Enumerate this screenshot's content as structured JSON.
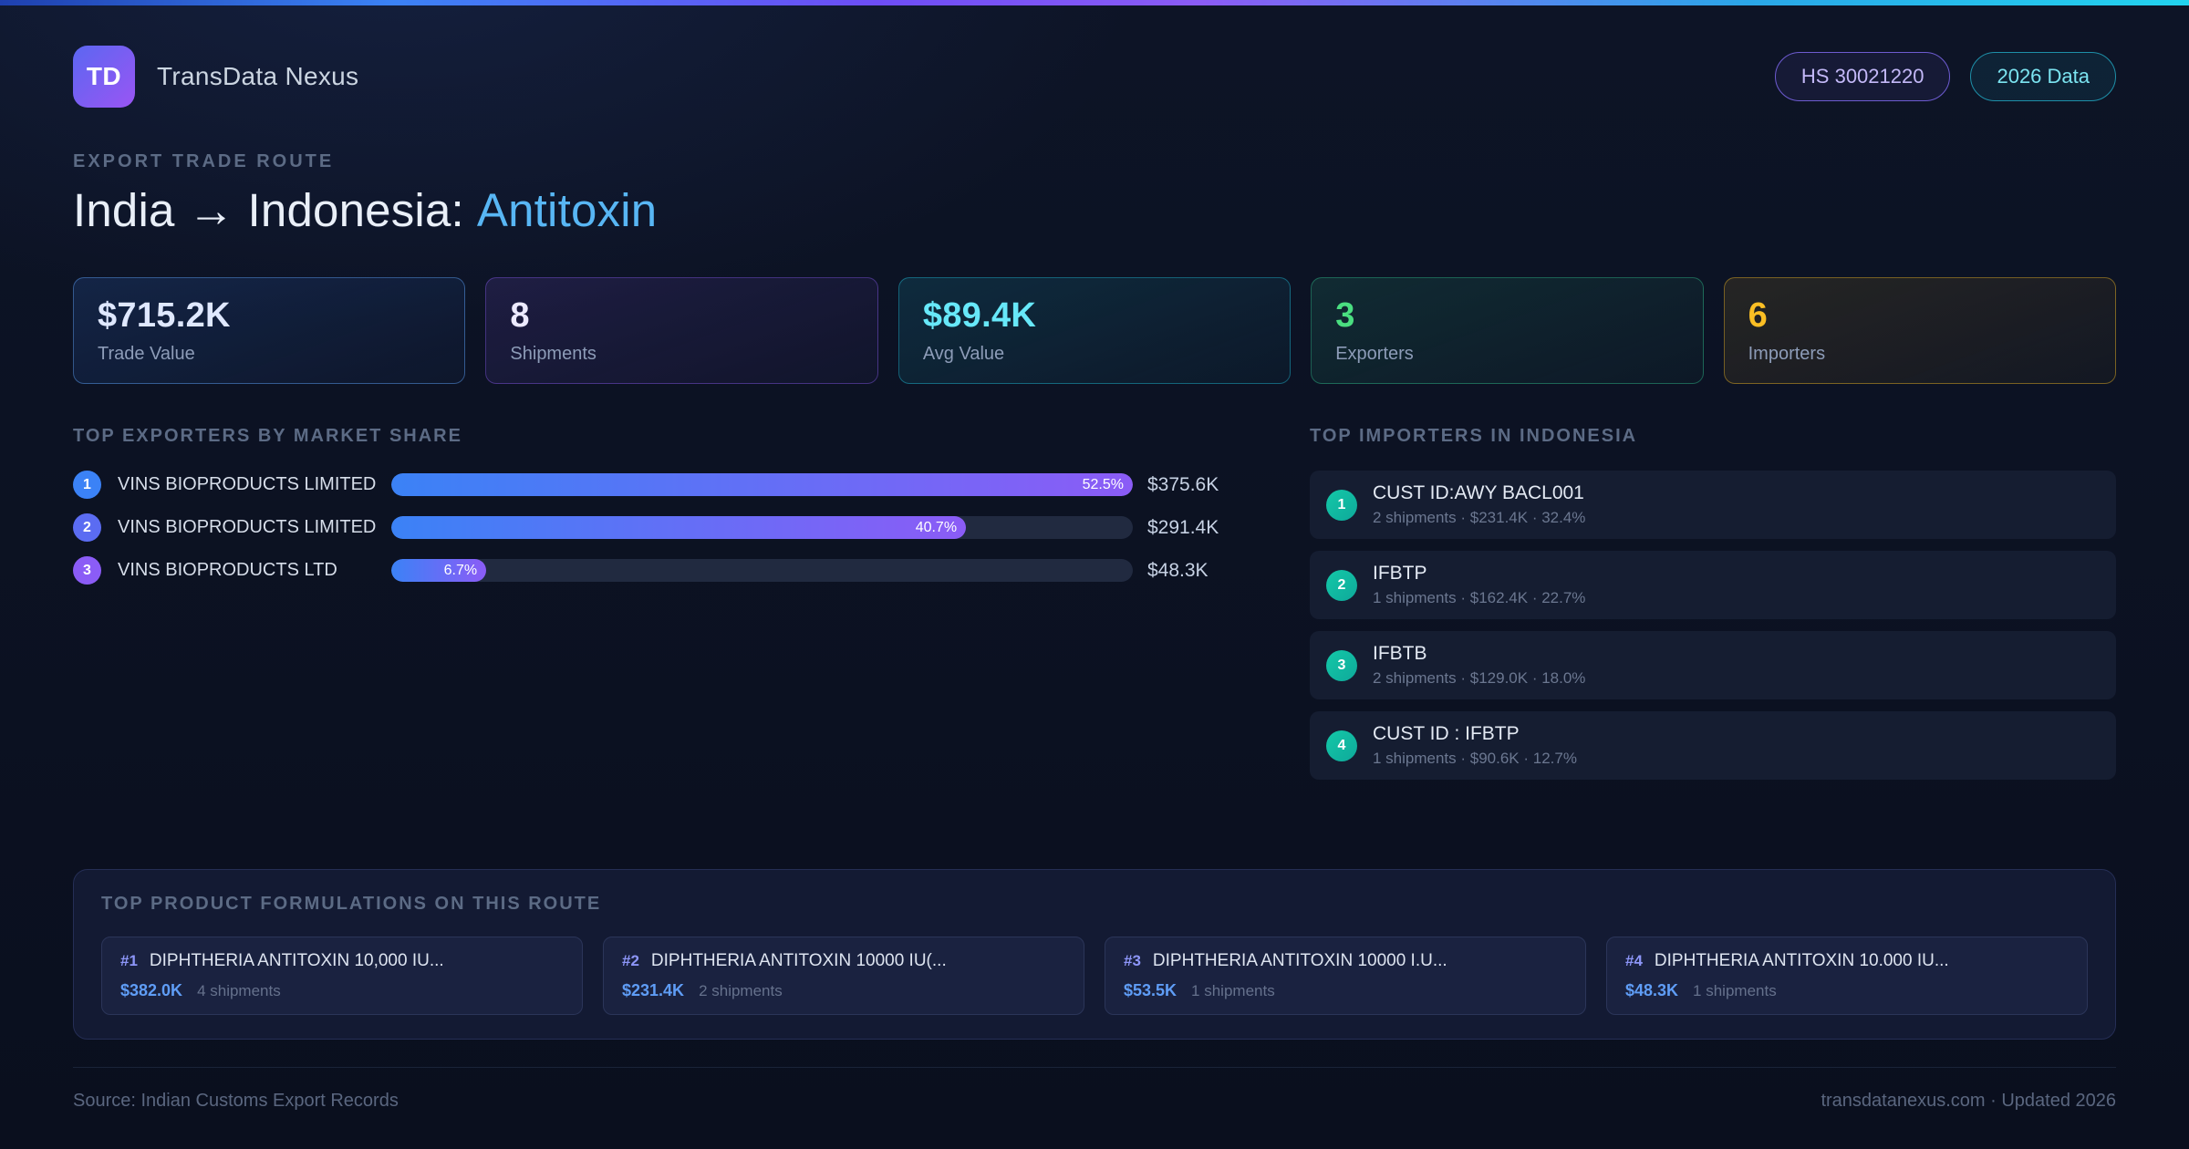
{
  "header": {
    "logo_text": "TD",
    "app_name": "TransData Nexus",
    "badge_hs": "HS 30021220",
    "badge_year": "2026 Data"
  },
  "hero": {
    "eyebrow": "EXPORT TRADE ROUTE",
    "title": "India → Indonesia:",
    "commodity": "Antitoxin"
  },
  "stats": [
    {
      "value": "$715.2K",
      "label": "Trade Value"
    },
    {
      "value": "8",
      "label": "Shipments"
    },
    {
      "value": "$89.4K",
      "label": "Avg Value"
    },
    {
      "value": "3",
      "label": "Exporters"
    },
    {
      "value": "6",
      "label": "Importers"
    }
  ],
  "exporters": {
    "heading": "TOP EXPORTERS BY MARKET SHARE",
    "rows": [
      {
        "rank": "1",
        "name": "VINS BIOPRODUCTS LIMITED",
        "share_label": "52.5%",
        "bar_pct": 100,
        "value": "$375.6K",
        "badge_color": "#3b82f6"
      },
      {
        "rank": "2",
        "name": "VINS BIOPRODUCTS LIMITED",
        "share_label": "40.7%",
        "bar_pct": 77.5,
        "value": "$291.4K",
        "badge_color": "#5b6cf2"
      },
      {
        "rank": "3",
        "name": "VINS BIOPRODUCTS LTD",
        "share_label": "6.7%",
        "bar_pct": 12.8,
        "value": "$48.3K",
        "badge_color": "#8b5cf6"
      }
    ]
  },
  "importers": {
    "heading": "TOP IMPORTERS IN INDONESIA",
    "rows": [
      {
        "rank": "1",
        "name": "CUST ID:AWY BACL001",
        "detail": "2 shipments · $231.4K · 32.4%"
      },
      {
        "rank": "2",
        "name": "IFBTP",
        "detail": "1 shipments · $162.4K · 22.7%"
      },
      {
        "rank": "3",
        "name": "IFBTB",
        "detail": "2 shipments · $129.0K · 18.0%"
      },
      {
        "rank": "4",
        "name": "CUST ID : IFBTP",
        "detail": "1 shipments · $90.6K · 12.7%"
      }
    ]
  },
  "products": {
    "heading": "TOP PRODUCT FORMULATIONS ON THIS ROUTE",
    "cards": [
      {
        "rank": "#1",
        "name": "DIPHTHERIA ANTITOXIN 10,000 IU...",
        "value": "$382.0K",
        "shipments": "4 shipments"
      },
      {
        "rank": "#2",
        "name": "DIPHTHERIA ANTITOXIN 10000 IU(...",
        "value": "$231.4K",
        "shipments": "2 shipments"
      },
      {
        "rank": "#3",
        "name": "DIPHTHERIA ANTITOXIN 10000 I.U...",
        "value": "$53.5K",
        "shipments": "1 shipments"
      },
      {
        "rank": "#4",
        "name": "DIPHTHERIA ANTITOXIN 10.000 IU...",
        "value": "$48.3K",
        "shipments": "1 shipments"
      }
    ]
  },
  "footer": {
    "source": "Source: Indian Customs Export Records",
    "site": "transdatanexus.com · Updated 2026"
  },
  "colors": {
    "accent_highlight": "#58b6f4",
    "bar_gradient": [
      "#3b82f6",
      "#8b5cf6"
    ],
    "importer_badge": "#14c8a8",
    "stat_values": [
      "#dfe8ff",
      "#eceaff",
      "#67e8f9",
      "#4ade80",
      "#fbbf24"
    ]
  }
}
